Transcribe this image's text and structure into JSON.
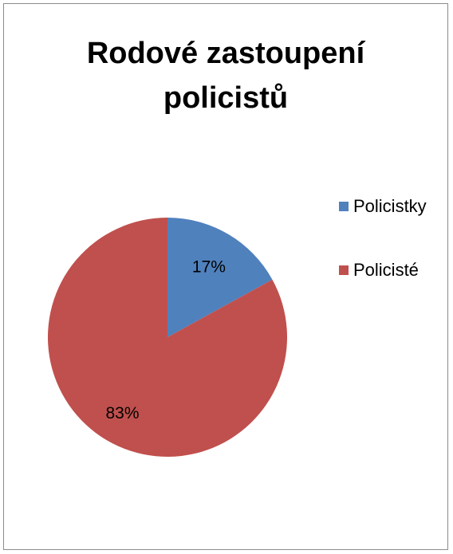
{
  "chart_data": {
    "type": "pie",
    "title_lines": [
      "Rodové zastoupení",
      "policistů"
    ],
    "categories": [
      "Policistky",
      "Policisté"
    ],
    "values": [
      17,
      83
    ],
    "data_labels": [
      "17%",
      "83%"
    ],
    "colors": [
      "#4f81bd",
      "#c0504d"
    ],
    "legend_position": "right"
  }
}
